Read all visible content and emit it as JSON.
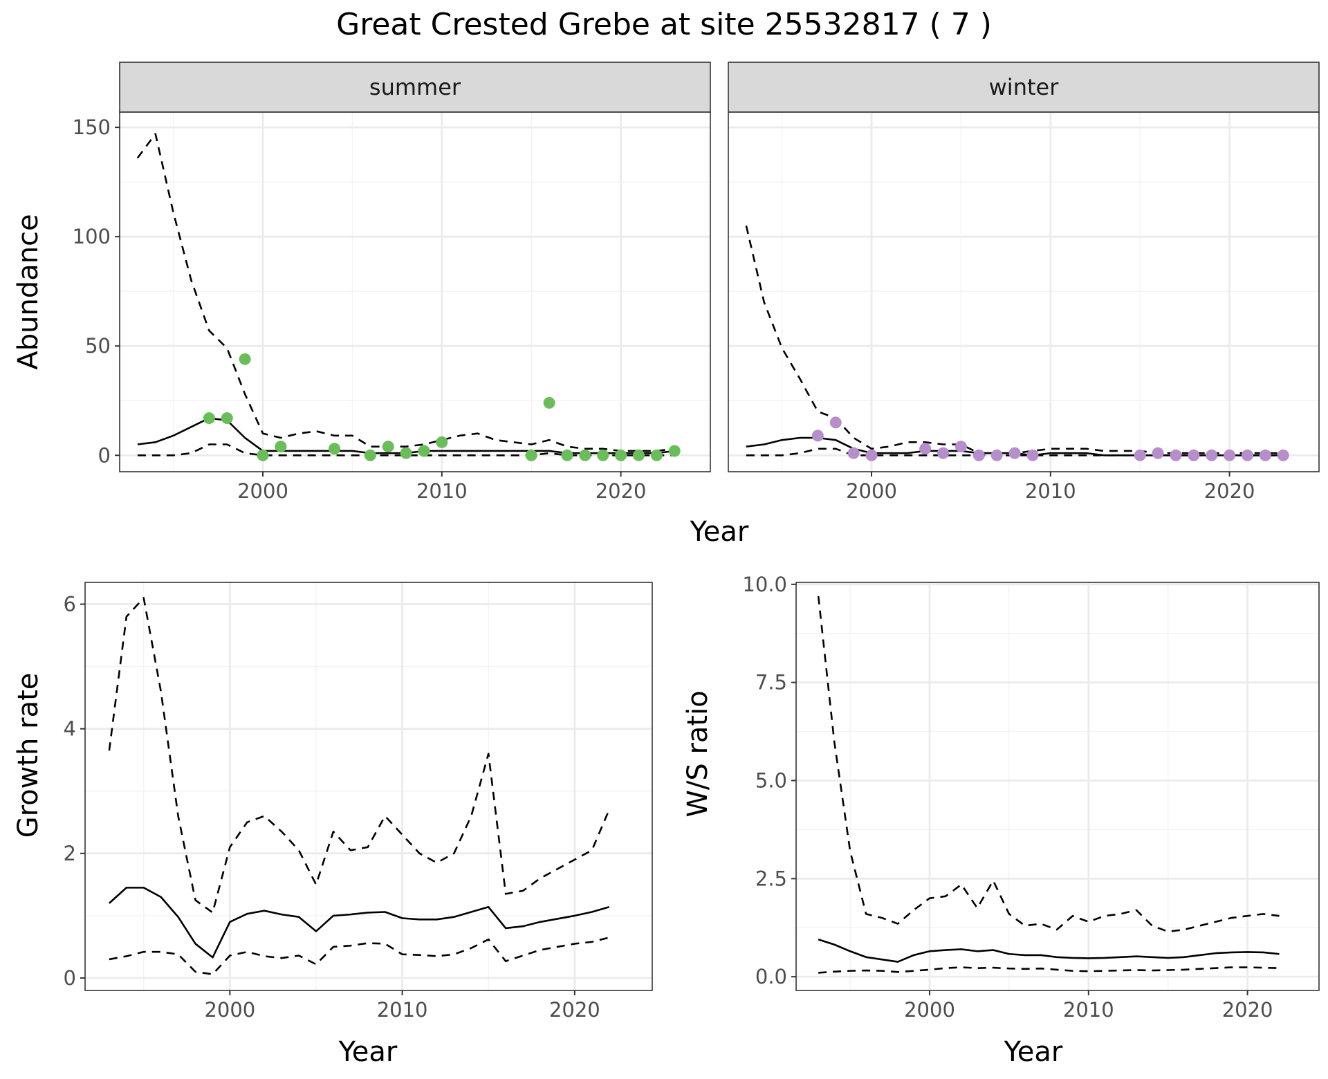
{
  "figure": {
    "title": "Great Crested Grebe at site 25532817 ( 7 )"
  },
  "colors": {
    "summer_points": "#6ABE59",
    "winter_points": "#B68ECB",
    "lines": "#000000"
  },
  "chart_data": [
    {
      "id": "abundance",
      "type": "line",
      "facet_by": "season",
      "facets": [
        "summer",
        "winter"
      ],
      "xlabel": "Year",
      "ylabel": "Abundance",
      "xlim": [
        1992,
        2025
      ],
      "ylim": [
        -7.5,
        157
      ],
      "x_ticks": [
        2000,
        2010,
        2020
      ],
      "y_ticks": [
        0,
        50,
        100,
        150
      ],
      "grid": true,
      "legend": "none",
      "panels": [
        {
          "facet": "summer",
          "series": [
            {
              "role": "upper",
              "style": "dashed",
              "x": [
                1993,
                1994,
                1995,
                1996,
                1997,
                1998,
                1999,
                2000,
                2001,
                2002,
                2003,
                2004,
                2005,
                2006,
                2007,
                2008,
                2009,
                2010,
                2011,
                2012,
                2013,
                2014,
                2015,
                2016,
                2017,
                2018,
                2019,
                2020,
                2021,
                2022,
                2023
              ],
              "y": [
                136,
                147,
                111,
                80,
                57,
                49,
                28,
                10,
                8,
                10,
                11,
                9,
                9,
                4,
                4,
                4,
                5,
                7,
                9,
                10,
                7,
                6,
                5,
                7,
                4,
                3,
                3,
                2,
                2,
                2,
                3
              ]
            },
            {
              "role": "estimate",
              "style": "solid",
              "x": [
                1993,
                1994,
                1995,
                1996,
                1997,
                1998,
                1999,
                2000,
                2001,
                2002,
                2003,
                2004,
                2005,
                2006,
                2007,
                2008,
                2009,
                2010,
                2011,
                2012,
                2013,
                2014,
                2015,
                2016,
                2017,
                2018,
                2019,
                2020,
                2021,
                2022,
                2023
              ],
              "y": [
                5,
                6,
                9,
                13,
                17,
                16,
                8,
                2,
                2,
                2,
                2,
                2,
                2,
                1,
                1,
                1,
                2,
                2,
                2,
                2,
                2,
                2,
                2,
                2,
                1,
                1,
                1,
                1,
                1,
                1,
                2
              ]
            },
            {
              "role": "lower",
              "style": "dashed",
              "x": [
                1993,
                1994,
                1995,
                1996,
                1997,
                1998,
                1999,
                2000,
                2001,
                2002,
                2003,
                2004,
                2005,
                2006,
                2007,
                2008,
                2009,
                2010,
                2011,
                2012,
                2013,
                2014,
                2015,
                2016,
                2017,
                2018,
                2019,
                2020,
                2021,
                2022,
                2023
              ],
              "y": [
                0,
                0,
                0,
                1,
                5,
                5,
                1,
                0,
                0,
                0,
                0,
                0,
                0,
                0,
                0,
                0,
                0,
                0,
                0,
                0,
                0,
                0,
                0,
                1,
                0,
                0,
                0,
                0,
                0,
                0,
                0
              ]
            }
          ],
          "points": {
            "x": [
              1997,
              1998,
              1999,
              2000,
              2001,
              2004,
              2006,
              2007,
              2008,
              2009,
              2010,
              2015,
              2016,
              2017,
              2018,
              2019,
              2020,
              2021,
              2022,
              2023
            ],
            "y": [
              17,
              17,
              44,
              0,
              4,
              3,
              0,
              4,
              1,
              2,
              6,
              0,
              24,
              0,
              0,
              0,
              0,
              0,
              0,
              2
            ]
          }
        },
        {
          "facet": "winter",
          "series": [
            {
              "role": "upper",
              "style": "dashed",
              "x": [
                1993,
                1994,
                1995,
                1996,
                1997,
                1998,
                1999,
                2000,
                2001,
                2002,
                2003,
                2004,
                2005,
                2006,
                2007,
                2008,
                2009,
                2010,
                2011,
                2012,
                2013,
                2014,
                2015,
                2016,
                2017,
                2018,
                2019,
                2020,
                2021,
                2022,
                2023
              ],
              "y": [
                105,
                70,
                49,
                35,
                20,
                17,
                8,
                3,
                4,
                6,
                6,
                5,
                5,
                1,
                1,
                1,
                2,
                3,
                3,
                3,
                2,
                2,
                2,
                1,
                1,
                1,
                1,
                1,
                1,
                1,
                1
              ]
            },
            {
              "role": "estimate",
              "style": "solid",
              "x": [
                1993,
                1994,
                1995,
                1996,
                1997,
                1998,
                1999,
                2000,
                2001,
                2002,
                2003,
                2004,
                2005,
                2006,
                2007,
                2008,
                2009,
                2010,
                2011,
                2012,
                2013,
                2014,
                2015,
                2016,
                2017,
                2018,
                2019,
                2020,
                2021,
                2022,
                2023
              ],
              "y": [
                4,
                5,
                7,
                8,
                8,
                7,
                3,
                1,
                1,
                1,
                2,
                2,
                2,
                1,
                1,
                1,
                0,
                1,
                1,
                1,
                0,
                0,
                0,
                0,
                0,
                0,
                0,
                0,
                0,
                0,
                0
              ]
            },
            {
              "role": "lower",
              "style": "dashed",
              "x": [
                1993,
                1994,
                1995,
                1996,
                1997,
                1998,
                1999,
                2000,
                2001,
                2002,
                2003,
                2004,
                2005,
                2006,
                2007,
                2008,
                2009,
                2010,
                2011,
                2012,
                2013,
                2014,
                2015,
                2016,
                2017,
                2018,
                2019,
                2020,
                2021,
                2022,
                2023
              ],
              "y": [
                0,
                0,
                0,
                1,
                3,
                3,
                0,
                0,
                0,
                0,
                0,
                0,
                0,
                0,
                0,
                0,
                0,
                0,
                0,
                0,
                0,
                0,
                0,
                0,
                0,
                0,
                0,
                0,
                0,
                0,
                0
              ]
            }
          ],
          "points": {
            "x": [
              1997,
              1998,
              1999,
              2000,
              2003,
              2004,
              2005,
              2006,
              2007,
              2008,
              2009,
              2015,
              2016,
              2017,
              2018,
              2019,
              2020,
              2021,
              2022,
              2023
            ],
            "y": [
              9,
              15,
              1,
              0,
              3,
              1,
              4,
              0,
              0,
              1,
              0,
              0,
              1,
              0,
              0,
              0,
              0,
              0,
              0,
              0
            ]
          }
        }
      ]
    },
    {
      "id": "growth",
      "type": "line",
      "xlabel": "Year",
      "ylabel": "Growth rate",
      "xlim": [
        1991.6,
        2024.5
      ],
      "ylim": [
        -0.2,
        6.35
      ],
      "x_ticks": [
        2000,
        2010,
        2020
      ],
      "y_ticks": [
        0,
        2,
        4,
        6
      ],
      "grid": true,
      "legend": "none",
      "series": [
        {
          "role": "upper",
          "style": "dashed",
          "x": [
            1993,
            1994,
            1995,
            1996,
            1997,
            1998,
            1999,
            2000,
            2001,
            2002,
            2003,
            2004,
            2005,
            2006,
            2007,
            2008,
            2009,
            2010,
            2011,
            2012,
            2013,
            2014,
            2015,
            2016,
            2017,
            2018,
            2019,
            2020,
            2021,
            2022
          ],
          "y": [
            3.65,
            5.8,
            6.1,
            4.6,
            2.6,
            1.25,
            1.05,
            2.1,
            2.5,
            2.6,
            2.35,
            2.05,
            1.5,
            2.35,
            2.05,
            2.1,
            2.6,
            2.3,
            2.0,
            1.85,
            2.0,
            2.6,
            3.6,
            1.35,
            1.4,
            1.6,
            1.75,
            1.9,
            2.05,
            2.7
          ]
        },
        {
          "role": "estimate",
          "style": "solid",
          "x": [
            1993,
            1994,
            1995,
            1996,
            1997,
            1998,
            1999,
            2000,
            2001,
            2002,
            2003,
            2004,
            2005,
            2006,
            2007,
            2008,
            2009,
            2010,
            2011,
            2012,
            2013,
            2014,
            2015,
            2016,
            2017,
            2018,
            2019,
            2020,
            2021,
            2022
          ],
          "y": [
            1.2,
            1.45,
            1.45,
            1.3,
            0.98,
            0.55,
            0.33,
            0.9,
            1.03,
            1.08,
            1.02,
            0.98,
            0.75,
            1.0,
            1.02,
            1.05,
            1.06,
            0.96,
            0.94,
            0.94,
            0.98,
            1.06,
            1.14,
            0.8,
            0.83,
            0.9,
            0.95,
            1.0,
            1.06,
            1.14
          ]
        },
        {
          "role": "lower",
          "style": "dashed",
          "x": [
            1993,
            1994,
            1995,
            1996,
            1997,
            1998,
            1999,
            2000,
            2001,
            2002,
            2003,
            2004,
            2005,
            2006,
            2007,
            2008,
            2009,
            2010,
            2011,
            2012,
            2013,
            2014,
            2015,
            2016,
            2017,
            2018,
            2019,
            2020,
            2021,
            2022
          ],
          "y": [
            0.3,
            0.35,
            0.42,
            0.42,
            0.38,
            0.1,
            0.06,
            0.36,
            0.42,
            0.35,
            0.32,
            0.36,
            0.22,
            0.5,
            0.52,
            0.56,
            0.55,
            0.38,
            0.37,
            0.35,
            0.38,
            0.48,
            0.62,
            0.27,
            0.36,
            0.45,
            0.5,
            0.55,
            0.58,
            0.65
          ]
        }
      ]
    },
    {
      "id": "ws_ratio",
      "type": "line",
      "xlabel": "Year",
      "ylabel": "W/S ratio",
      "xlim": [
        1991.6,
        2024.5
      ],
      "ylim": [
        -0.35,
        10.05
      ],
      "x_ticks": [
        2000,
        2010,
        2020
      ],
      "y_ticks": [
        0.0,
        2.5,
        5.0,
        7.5,
        10.0
      ],
      "y_tick_labels": [
        "0.0",
        "2.5",
        "5.0",
        "7.5",
        "10.0"
      ],
      "grid": true,
      "legend": "none",
      "series": [
        {
          "role": "upper",
          "style": "dashed",
          "x": [
            1993,
            1994,
            1995,
            1996,
            1997,
            1998,
            1999,
            2000,
            2001,
            2002,
            2003,
            2004,
            2005,
            2006,
            2007,
            2008,
            2009,
            2010,
            2011,
            2012,
            2013,
            2014,
            2015,
            2016,
            2017,
            2018,
            2019,
            2020,
            2021,
            2022
          ],
          "y": [
            9.7,
            6.0,
            3.2,
            1.6,
            1.5,
            1.35,
            1.7,
            2.0,
            2.05,
            2.35,
            1.75,
            2.45,
            1.6,
            1.3,
            1.35,
            1.2,
            1.55,
            1.4,
            1.55,
            1.6,
            1.7,
            1.3,
            1.15,
            1.2,
            1.3,
            1.4,
            1.5,
            1.55,
            1.6,
            1.55
          ]
        },
        {
          "role": "estimate",
          "style": "solid",
          "x": [
            1993,
            1994,
            1995,
            1996,
            1997,
            1998,
            1999,
            2000,
            2001,
            2002,
            2003,
            2004,
            2005,
            2006,
            2007,
            2008,
            2009,
            2010,
            2011,
            2012,
            2013,
            2014,
            2015,
            2016,
            2017,
            2018,
            2019,
            2020,
            2021,
            2022
          ],
          "y": [
            0.95,
            0.82,
            0.65,
            0.5,
            0.44,
            0.38,
            0.55,
            0.65,
            0.68,
            0.7,
            0.65,
            0.68,
            0.58,
            0.55,
            0.55,
            0.5,
            0.48,
            0.47,
            0.48,
            0.5,
            0.52,
            0.5,
            0.48,
            0.5,
            0.55,
            0.6,
            0.62,
            0.63,
            0.62,
            0.58
          ]
        },
        {
          "role": "lower",
          "style": "dashed",
          "x": [
            1993,
            1994,
            1995,
            1996,
            1997,
            1998,
            1999,
            2000,
            2001,
            2002,
            2003,
            2004,
            2005,
            2006,
            2007,
            2008,
            2009,
            2010,
            2011,
            2012,
            2013,
            2014,
            2015,
            2016,
            2017,
            2018,
            2019,
            2020,
            2021,
            2022
          ],
          "y": [
            0.1,
            0.13,
            0.15,
            0.16,
            0.15,
            0.12,
            0.15,
            0.18,
            0.22,
            0.24,
            0.22,
            0.23,
            0.21,
            0.2,
            0.21,
            0.18,
            0.15,
            0.14,
            0.15,
            0.16,
            0.17,
            0.16,
            0.17,
            0.18,
            0.2,
            0.22,
            0.24,
            0.24,
            0.23,
            0.22
          ]
        }
      ]
    }
  ]
}
